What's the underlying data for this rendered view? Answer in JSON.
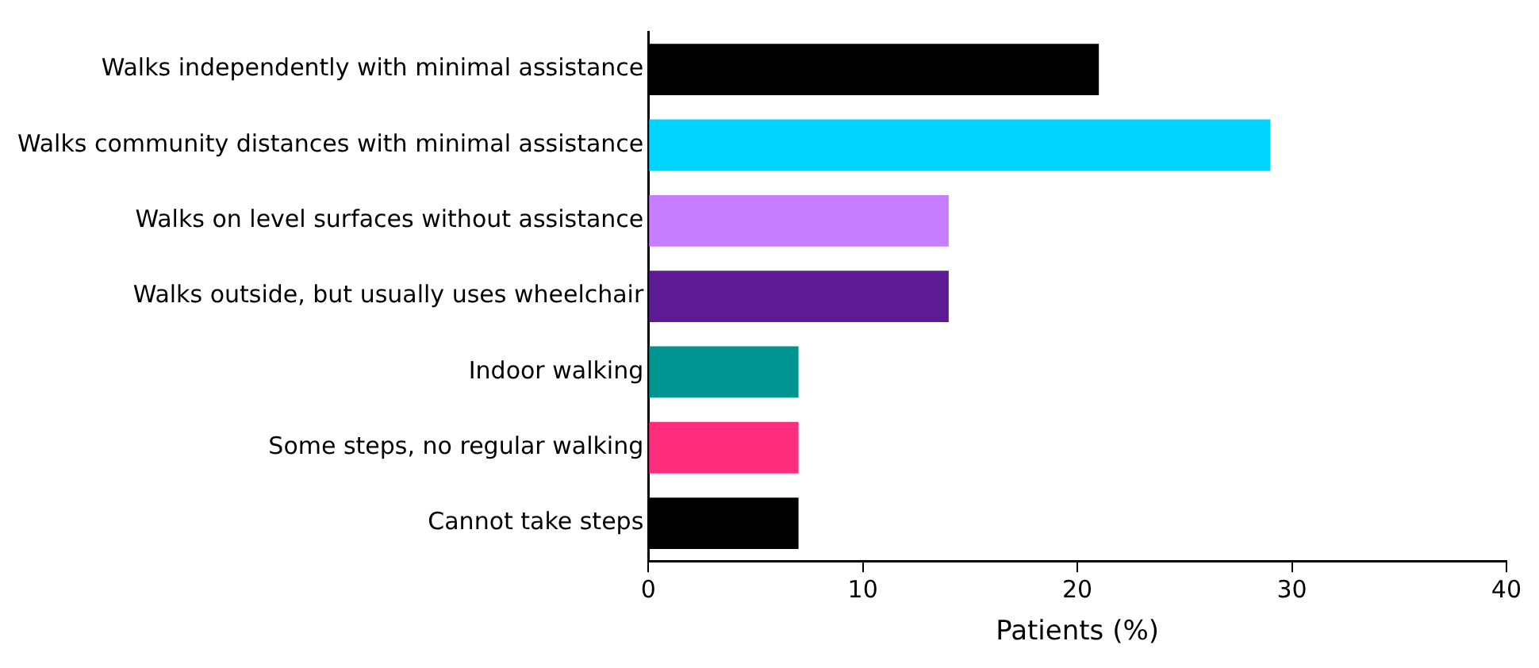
{
  "chart_data": {
    "type": "bar",
    "orientation": "horizontal",
    "categories": [
      "Walks independently with minimal assistance",
      "Walks community distances with minimal assistance",
      "Walks on level surfaces without assistance",
      "Walks outside, but usually uses wheelchair",
      "Indoor walking",
      "Some steps, no regular walking",
      "Cannot take steps"
    ],
    "values": [
      21,
      29,
      14,
      14,
      7,
      7,
      7
    ],
    "colors": [
      "#000000",
      "#00d4ff",
      "#c77dff",
      "#5c1a94",
      "#009490",
      "#ff2d7b",
      "#000000"
    ],
    "xlabel": "Patients (%)",
    "xlim": [
      0,
      40
    ],
    "xticks": [
      0,
      10,
      20,
      30,
      40
    ],
    "grid": false,
    "legend": false
  }
}
